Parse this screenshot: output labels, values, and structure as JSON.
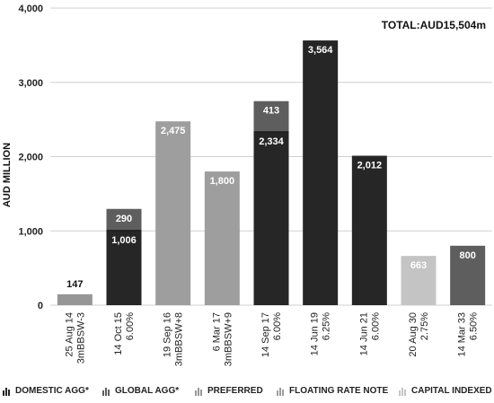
{
  "chart_data": {
    "type": "bar",
    "title": "",
    "total_label": "TOTAL:AUD15,504m",
    "ylabel": "AUD MILLION",
    "xlabel": "",
    "ylim": [
      0,
      4000
    ],
    "yticks": [
      "0",
      "1,000",
      "2,000",
      "3,000",
      "4,000"
    ],
    "ytick_values": [
      0,
      1000,
      2000,
      3000,
      4000
    ],
    "grid": true,
    "categories": [
      {
        "line1": "25 Aug 14",
        "line2": "3mBBSW-3"
      },
      {
        "line1": "14 Oct 15",
        "line2": "6.00%"
      },
      {
        "line1": "19 Sep 16",
        "line2": "3mBBSW+8"
      },
      {
        "line1": "6 Mar 17",
        "line2": "3mBBSW+9"
      },
      {
        "line1": "14 Sep 17",
        "line2": "6.00%"
      },
      {
        "line1": "14 Jun 19",
        "line2": "6.25%"
      },
      {
        "line1": "14 Jun 21",
        "line2": "6.00%"
      },
      {
        "line1": "20 Aug 30",
        "line2": "2.75%"
      },
      {
        "line1": "14 Mar 33",
        "line2": "6.50%"
      }
    ],
    "bars": [
      {
        "segments": [
          {
            "series": 2,
            "value": 147,
            "label": "147"
          }
        ],
        "label_outside": true
      },
      {
        "segments": [
          {
            "series": 0,
            "value": 1006,
            "label": "1,006"
          },
          {
            "series": 1,
            "value": 290,
            "label": "290"
          }
        ],
        "label_outside": false
      },
      {
        "segments": [
          {
            "series": 3,
            "value": 2475,
            "label": "2,475"
          }
        ],
        "label_outside": false
      },
      {
        "segments": [
          {
            "series": 3,
            "value": 1800,
            "label": "1,800"
          }
        ],
        "label_outside": false
      },
      {
        "segments": [
          {
            "series": 0,
            "value": 2334,
            "label": "2,334"
          },
          {
            "series": 1,
            "value": 413,
            "label": "413"
          }
        ],
        "label_outside": false
      },
      {
        "segments": [
          {
            "series": 0,
            "value": 3564,
            "label": "3,564"
          }
        ],
        "label_outside": false
      },
      {
        "segments": [
          {
            "series": 0,
            "value": 2012,
            "label": "2,012"
          }
        ],
        "label_outside": false
      },
      {
        "segments": [
          {
            "series": 4,
            "value": 663,
            "label": "663"
          }
        ],
        "label_outside": false
      },
      {
        "segments": [
          {
            "series": 1,
            "value": 800,
            "label": "800"
          }
        ],
        "label_outside": false
      }
    ],
    "series": [
      {
        "name": "DOMESTIC AGG*",
        "color": "#262626"
      },
      {
        "name": "GLOBAL AGG*",
        "color": "#5e5e5e"
      },
      {
        "name": "PREFERRED",
        "color": "#969696"
      },
      {
        "name": "FLOATING RATE NOTE",
        "color": "#9e9e9e"
      },
      {
        "name": "CAPITAL INDEXED",
        "color": "#c4c4c4"
      }
    ],
    "legend_position": "bottom"
  }
}
